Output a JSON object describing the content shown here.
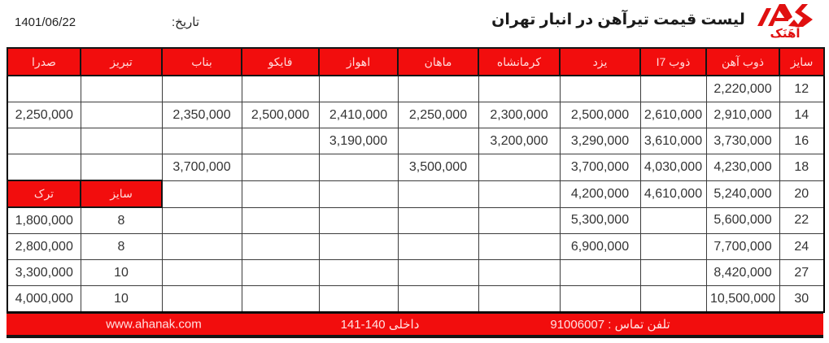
{
  "meta": {
    "title": "لیست قیمت تیرآهن در انبار تهران",
    "date_label": "تاریخ:",
    "date_value": "1401/06/22",
    "logo_text": "آهَنَک"
  },
  "colors": {
    "accent_red": "#f20d0d",
    "header_text": "#ffdbdb",
    "body_text": "#333333",
    "border": "#141414"
  },
  "table": {
    "columns": [
      {
        "key": "size",
        "label": "سایز"
      },
      {
        "key": "zob_ahan",
        "label": "ذوب آهن"
      },
      {
        "key": "zob_i7",
        "label": "ذوب I7"
      },
      {
        "key": "yazd",
        "label": "یزد"
      },
      {
        "key": "kermanshah",
        "label": "کرمانشاه"
      },
      {
        "key": "mahan",
        "label": "ماهان"
      },
      {
        "key": "ahvaz",
        "label": "اهواز"
      },
      {
        "key": "fayko",
        "label": "فایکو"
      },
      {
        "key": "bonab",
        "label": "بناب"
      },
      {
        "key": "tabriz",
        "label": "تبریز"
      },
      {
        "key": "sadra",
        "label": "صدرا"
      }
    ],
    "rows": [
      [
        "12",
        "2,220,000",
        "",
        "",
        "",
        "",
        "",
        "",
        "",
        "",
        ""
      ],
      [
        "14",
        "2,910,000",
        "2,610,000",
        "2,500,000",
        "2,300,000",
        "2,250,000",
        "2,410,000",
        "2,500,000",
        "2,350,000",
        "",
        "2,250,000"
      ],
      [
        "16",
        "3,730,000",
        "3,610,000",
        "3,290,000",
        "3,200,000",
        "",
        "3,190,000",
        "",
        "",
        "",
        ""
      ],
      [
        "18",
        "4,230,000",
        "4,030,000",
        "3,700,000",
        "",
        "3,500,000",
        "",
        "",
        "3,700,000",
        "",
        ""
      ],
      [
        "20",
        "5,240,000",
        "4,610,000",
        "4,200,000",
        "",
        "",
        "",
        "",
        "",
        {
          "text": "سایز",
          "variant": "header"
        },
        {
          "text": "ترک",
          "variant": "header"
        }
      ],
      [
        "22",
        "5,600,000",
        "",
        "5,300,000",
        "",
        "",
        "",
        "",
        "",
        "8",
        "1,800,000"
      ],
      [
        "24",
        "7,700,000",
        "",
        "6,900,000",
        "",
        "",
        "",
        "",
        "",
        "8",
        "2,800,000"
      ],
      [
        "27",
        "8,420,000",
        "",
        "",
        "",
        "",
        "",
        "",
        "",
        "10",
        "3,300,000"
      ],
      [
        "30",
        "10,500,000",
        "",
        "",
        "",
        "",
        "",
        "",
        "",
        "10",
        "4,000,000"
      ]
    ]
  },
  "footer": {
    "phone": "تلفن تماس : 91006007",
    "extension": "داخلی 140-141",
    "website": "www.ahanak.com"
  }
}
